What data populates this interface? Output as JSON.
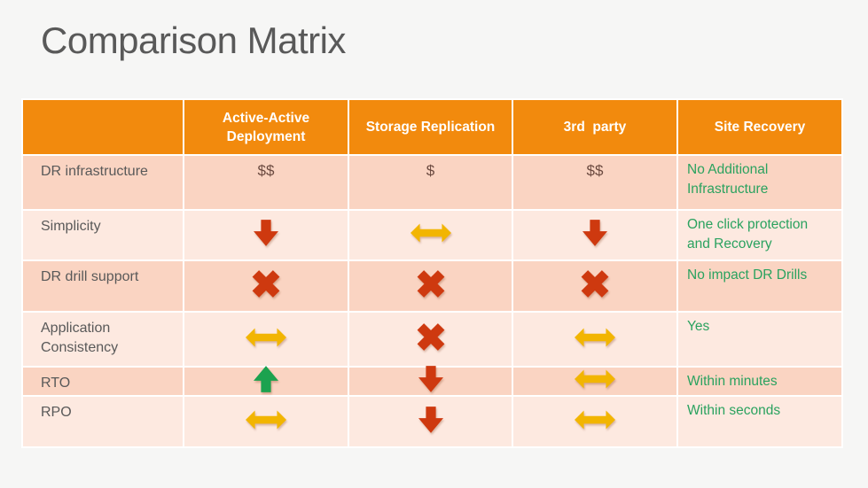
{
  "slide": {
    "title": "Comparison Matrix"
  },
  "colors": {
    "bg": "#F6F6F5",
    "title": "#595959",
    "orange": "#F28A0D",
    "rowDark": "#FAD4C2",
    "rowLight": "#FDE9E0",
    "label": "#595959",
    "dollar": "#6B4A40",
    "green-text": "#2AA25F",
    "icon-red": "#CE390F",
    "icon-yellow": "#F2B501",
    "icon-green": "#1CA24F"
  },
  "table": {
    "columns": [
      "",
      "Active-Active\nDeployment",
      "Storage Replication",
      "3rd  party",
      "Site Recovery"
    ],
    "rows": [
      {
        "label": "DR infrastructure",
        "cells": [
          {
            "type": "text",
            "value": "$$"
          },
          {
            "type": "text",
            "value": "$"
          },
          {
            "type": "text",
            "value": "$$"
          },
          {
            "type": "result",
            "value": "No Additional Infrastructure"
          }
        ]
      },
      {
        "label": "Simplicity",
        "cells": [
          {
            "type": "icon",
            "icon": "arrow-down-icon"
          },
          {
            "type": "icon",
            "icon": "arrow-leftright-icon"
          },
          {
            "type": "icon",
            "icon": "arrow-down-icon"
          },
          {
            "type": "result",
            "value": "One click protection and Recovery"
          }
        ]
      },
      {
        "label": "DR drill support",
        "cells": [
          {
            "type": "icon",
            "icon": "cross-icon"
          },
          {
            "type": "icon",
            "icon": "cross-icon"
          },
          {
            "type": "icon",
            "icon": "cross-icon"
          },
          {
            "type": "result",
            "value": "No impact DR Drills"
          }
        ]
      },
      {
        "label": "Application Consistency",
        "cells": [
          {
            "type": "icon",
            "icon": "arrow-leftright-icon"
          },
          {
            "type": "icon",
            "icon": "cross-icon"
          },
          {
            "type": "icon",
            "icon": "arrow-leftright-icon"
          },
          {
            "type": "result",
            "value": "Yes"
          }
        ]
      },
      {
        "label": "RTO",
        "cells": [
          {
            "type": "icon",
            "icon": "arrow-up-icon"
          },
          {
            "type": "icon",
            "icon": "arrow-down-icon"
          },
          {
            "type": "icon",
            "icon": "arrow-leftright-icon"
          },
          {
            "type": "result",
            "value": "Within minutes"
          }
        ]
      },
      {
        "label": "RPO",
        "cells": [
          {
            "type": "icon",
            "icon": "arrow-leftright-icon"
          },
          {
            "type": "icon",
            "icon": "arrow-down-icon"
          },
          {
            "type": "icon",
            "icon": "arrow-leftright-icon"
          },
          {
            "type": "result",
            "value": "Within seconds"
          }
        ]
      }
    ]
  }
}
